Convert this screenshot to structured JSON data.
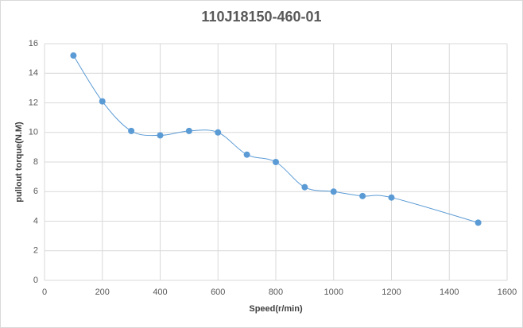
{
  "chart_data": {
    "type": "line",
    "title": "110J18150-460-01",
    "x_label": "Speed(r/min)",
    "y_label": "pullout torque(N.M)",
    "x": [
      100,
      200,
      300,
      400,
      500,
      600,
      700,
      800,
      900,
      1000,
      1100,
      1200,
      1500
    ],
    "values": [
      15.2,
      12.1,
      10.1,
      9.8,
      10.1,
      10.0,
      8.5,
      8.0,
      6.3,
      6.0,
      5.7,
      5.6,
      3.9
    ],
    "color": "#5b9bd5",
    "smooth": true,
    "markers": true,
    "xlim": [
      0,
      1600
    ],
    "xticks": [
      0,
      200,
      400,
      600,
      800,
      1000,
      1200,
      1400,
      1600
    ],
    "ylim": [
      0,
      16
    ],
    "yticks": [
      0,
      2,
      4,
      6,
      8,
      10,
      12,
      14,
      16
    ],
    "grid": true
  }
}
